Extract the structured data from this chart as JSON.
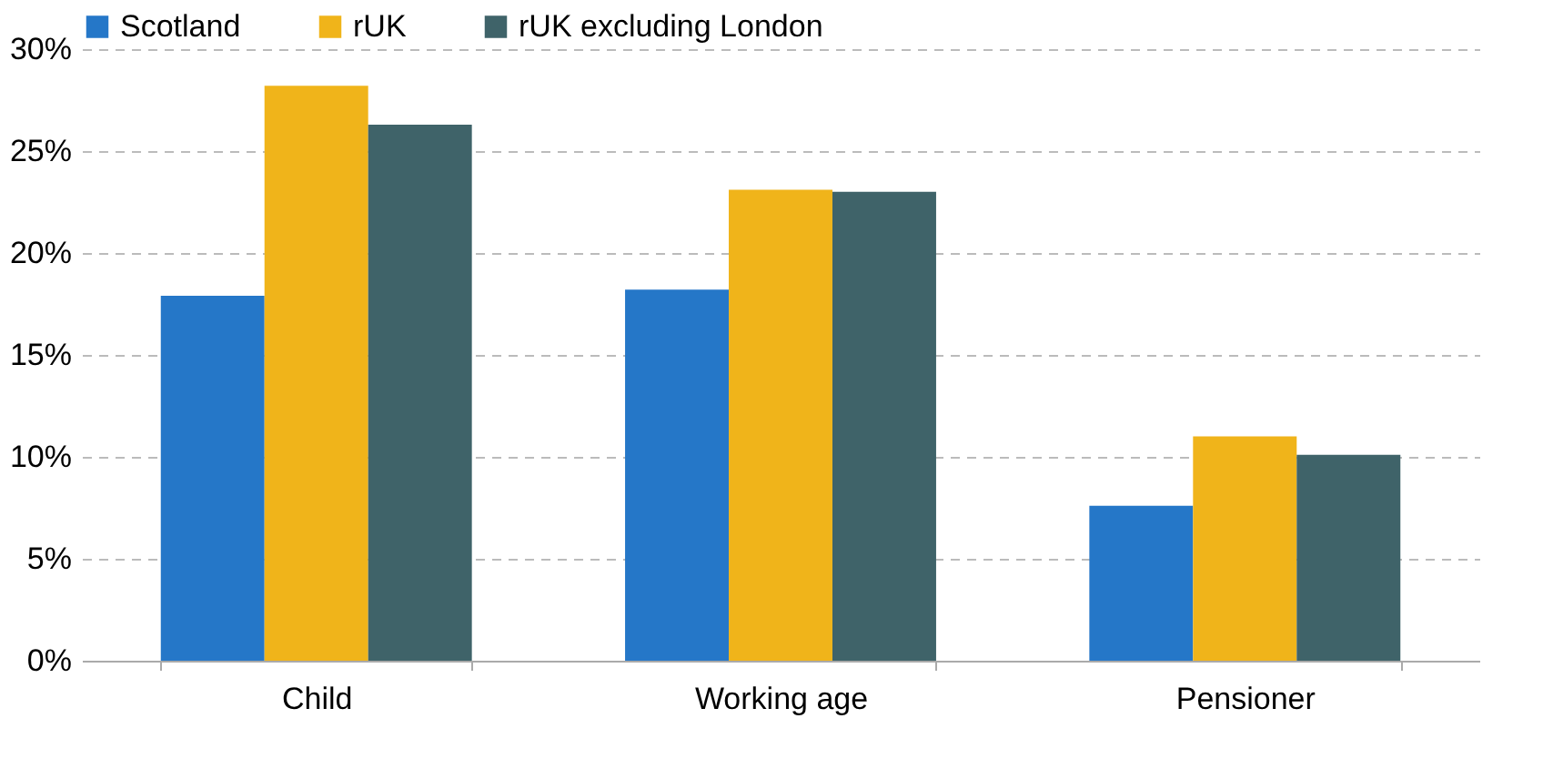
{
  "chart_data": {
    "type": "bar",
    "categories": [
      "Child",
      "Working age",
      "Pensioner"
    ],
    "series": [
      {
        "name": "Scotland",
        "color": "#2577c8",
        "values": [
          17.9,
          18.2,
          7.6
        ]
      },
      {
        "name": "rUK",
        "color": "#f0b41a",
        "values": [
          28.2,
          23.1,
          11.0
        ]
      },
      {
        "name": "rUK excluding London",
        "color": "#3f6369",
        "values": [
          26.3,
          23.0,
          10.1
        ]
      }
    ],
    "ylim": [
      0,
      30
    ],
    "yticks": [
      {
        "value": 0,
        "label": "0%"
      },
      {
        "value": 5,
        "label": "5%"
      },
      {
        "value": 10,
        "label": "10%"
      },
      {
        "value": 15,
        "label": "15%"
      },
      {
        "value": 20,
        "label": "20%"
      },
      {
        "value": 25,
        "label": "25%"
      },
      {
        "value": 30,
        "label": "30%"
      }
    ],
    "grid": "y",
    "legend": "top"
  }
}
